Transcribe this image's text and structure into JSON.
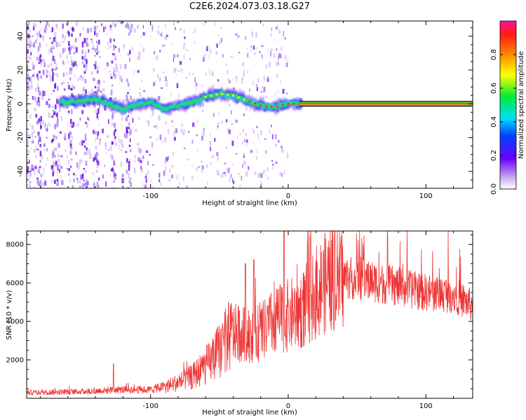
{
  "title": "C2E6.2024.073.03.18.G27",
  "colors": {
    "spectrum_line": "#22aa88",
    "snr_line": "#ee3333",
    "axis": "#000000"
  },
  "chart_data": [
    {
      "type": "heatmap",
      "name": "spectrogram",
      "xlabel": "Height of straight line (km)",
      "ylabel": "Frequency (Hz)",
      "xlim": [
        -190,
        134
      ],
      "ylim": [
        -50,
        49
      ],
      "x_ticks": [
        -100,
        0,
        100
      ],
      "x_tick_labels": [
        "-100",
        "0",
        "100"
      ],
      "y_ticks": [
        -40,
        -20,
        0,
        20,
        40
      ],
      "y_tick_labels": [
        "-40",
        "-20",
        "0",
        "20",
        "40"
      ],
      "colorbar": {
        "label": "Normalized spectral amplitude",
        "range": [
          0,
          1
        ],
        "ticks": [
          0.0,
          0.2,
          0.4,
          0.6,
          0.8
        ],
        "tick_labels": [
          "0.0",
          "0.2",
          "0.4",
          "0.6",
          "0.8"
        ]
      },
      "ridge": {
        "x": [
          -160,
          -140,
          -130,
          -120,
          -110,
          -100,
          -90,
          -80,
          -70,
          -60,
          -50,
          -40,
          -30,
          -20,
          -10,
          0,
          10
        ],
        "y": [
          1,
          3,
          0,
          -3,
          -1,
          1,
          -3,
          -1,
          1,
          4,
          6,
          5,
          2,
          -1,
          -2,
          0,
          0
        ]
      },
      "constant_line": {
        "x_from": 8,
        "x_to": 134,
        "y": 0
      }
    },
    {
      "type": "line",
      "name": "snr",
      "xlabel": "Height of straight line (km)",
      "ylabel": "SNR (10 * v/v)",
      "xlim": [
        -190,
        134
      ],
      "ylim": [
        0,
        8700
      ],
      "x_ticks": [
        -100,
        0,
        100
      ],
      "x_tick_labels": [
        "-100",
        "0",
        "100"
      ],
      "y_ticks": [
        2000,
        4000,
        6000,
        8000
      ],
      "y_tick_labels": [
        "2000",
        "4000",
        "6000",
        "8000"
      ],
      "envelope": {
        "x": [
          -190,
          -150,
          -120,
          -100,
          -85,
          -70,
          -55,
          -45,
          -40,
          -30,
          -20,
          -10,
          0,
          10,
          20,
          30,
          40,
          60,
          80,
          100,
          120,
          134
        ],
        "y": [
          300,
          350,
          450,
          450,
          700,
          1100,
          2000,
          3000,
          3400,
          3300,
          3400,
          4000,
          4300,
          4600,
          5500,
          6200,
          6300,
          6100,
          5800,
          5500,
          5400,
          4800
        ]
      },
      "peaks": [
        {
          "x": -3,
          "y": 8700
        },
        {
          "x": 16,
          "y": 8400
        },
        {
          "x": -31,
          "y": 7000
        },
        {
          "x": -25,
          "y": 7200
        },
        {
          "x": 38,
          "y": 8000
        },
        {
          "x": -127,
          "y": 1800
        }
      ]
    }
  ]
}
